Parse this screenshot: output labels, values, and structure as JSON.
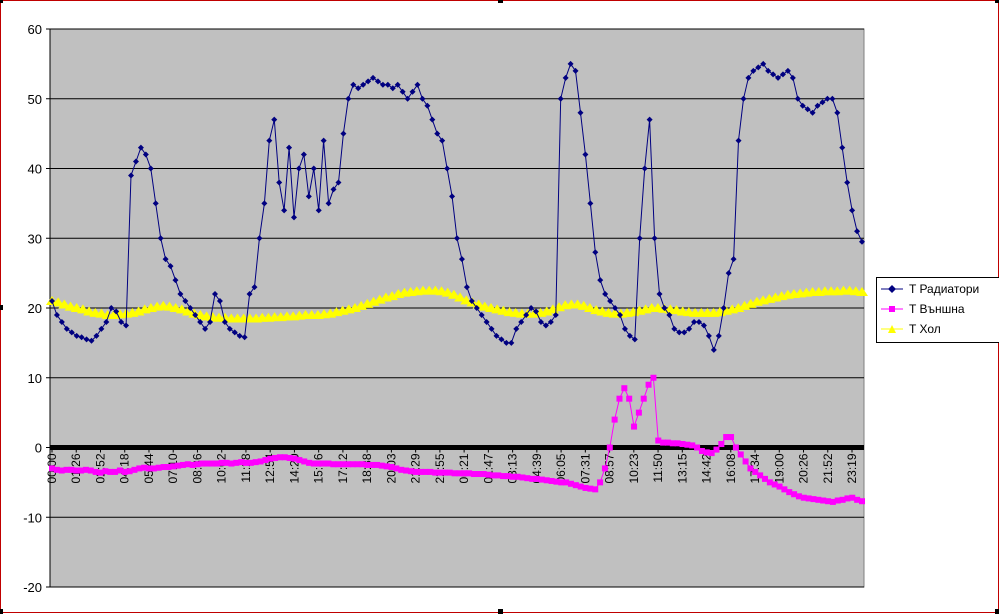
{
  "chart_data": {
    "type": "line",
    "title": "",
    "xlabel": "",
    "ylabel": "",
    "ylim": [
      -20,
      60
    ],
    "yticks": [
      -20,
      -10,
      0,
      10,
      20,
      30,
      40,
      50,
      60
    ],
    "xticks": [
      "00:00",
      "01:26",
      "02:52",
      "04:18",
      "05:44",
      "07:10",
      "08:36",
      "10:02",
      "11:28",
      "12:54",
      "14:20",
      "15:46",
      "17:12",
      "18:38",
      "20:03",
      "21:29",
      "22:55",
      "00:21",
      "01:47",
      "03:13",
      "04:39",
      "06:05",
      "07:31",
      "08:57",
      "10:23",
      "11:50",
      "13:15",
      "14:42",
      "16:08",
      "17:34",
      "19:00",
      "20:26",
      "21:52",
      "23:19"
    ],
    "grid": true,
    "legend_position": "right",
    "plot_background": "#c0c0c0",
    "series": [
      {
        "name": "T Радиатори",
        "color": "#000080",
        "marker": "diamond",
        "values": [
          21,
          19,
          18,
          17,
          16.5,
          16,
          15.8,
          15.5,
          15.3,
          16,
          17,
          18,
          20,
          19.5,
          18,
          17.5,
          39,
          41,
          43,
          42,
          40,
          35,
          30,
          27,
          26,
          24,
          22,
          21,
          20,
          19,
          18,
          17,
          18,
          22,
          21,
          18,
          17,
          16.5,
          16,
          15.8,
          22,
          23,
          30,
          35,
          44,
          47,
          38,
          34,
          43,
          33,
          40,
          42,
          36,
          40,
          34,
          44,
          35,
          37,
          38,
          45,
          50,
          52,
          51.5,
          52,
          52.5,
          53,
          52.5,
          52,
          52,
          51.5,
          52,
          51,
          50,
          51,
          52,
          50,
          49,
          47,
          45,
          44,
          40,
          36,
          30,
          27,
          23,
          21,
          20,
          19,
          18,
          17,
          16,
          15.5,
          15,
          15,
          17,
          18,
          19,
          20,
          19.5,
          18,
          17.5,
          18,
          19,
          50,
          53,
          55,
          54,
          48,
          42,
          35,
          28,
          24,
          22,
          21,
          20,
          19,
          17,
          16,
          15.5,
          30,
          40,
          47,
          30,
          22,
          20,
          19,
          17,
          16.5,
          16.5,
          17,
          18,
          18,
          17.5,
          16,
          14,
          16,
          20,
          25,
          27,
          44,
          50,
          53,
          54,
          54.5,
          55,
          54,
          53.5,
          53,
          53.5,
          54,
          53,
          50,
          49,
          48.5,
          48,
          49,
          49.5,
          50,
          50,
          48,
          43,
          38,
          34,
          31,
          29.5
        ]
      },
      {
        "name": "T Външна",
        "color": "#ff00ff",
        "marker": "square",
        "values": [
          -3,
          -3.2,
          -3.3,
          -3.2,
          -3.2,
          -3.3,
          -3.3,
          -3.2,
          -3.3,
          -3.5,
          -3.6,
          -3.4,
          -3.5,
          -3.5,
          -3.3,
          -3.5,
          -3.4,
          -3.2,
          -3,
          -2.9,
          -3,
          -3,
          -2.9,
          -2.8,
          -2.8,
          -2.7,
          -2.6,
          -2.5,
          -2.4,
          -2.5,
          -2.4,
          -2.3,
          -2.3,
          -2.3,
          -2.3,
          -2.2,
          -2.2,
          -2.3,
          -2.2,
          -2.1,
          -2.2,
          -2.2,
          -2.1,
          -2,
          -1.8,
          -1.6,
          -1.5,
          -1.4,
          -1.4,
          -1.5,
          -1.6,
          -1.8,
          -2,
          -2.2,
          -2.3,
          -2.3,
          -2.3,
          -2.3,
          -2.4,
          -2.4,
          -2.4,
          -2.4,
          -2.4,
          -2.4,
          -2.4,
          -2.5,
          -2.5,
          -2.5,
          -2.6,
          -2.7,
          -2.8,
          -3,
          -3.2,
          -3.3,
          -3.4,
          -3.5,
          -3.5,
          -3.5,
          -3.5,
          -3.6,
          -3.6,
          -3.6,
          -3.6,
          -3.7,
          -3.7,
          -3.7,
          -3.7,
          -3.8,
          -3.8,
          -3.8,
          -3.9,
          -4,
          -4,
          -4.1,
          -4.1,
          -4.2,
          -4.2,
          -4.3,
          -4.4,
          -4.5,
          -4.5,
          -4.6,
          -4.7,
          -4.8,
          -4.9,
          -5,
          -5,
          -5.2,
          -5.4,
          -5.6,
          -5.8,
          -5.9,
          -6,
          -5,
          -3,
          0,
          4,
          7,
          8.5,
          7,
          3,
          5,
          7,
          9,
          10,
          1,
          0.7,
          0.7,
          0.6,
          0.6,
          0.5,
          0.4,
          0.3,
          0,
          -0.5,
          -0.7,
          -0.8,
          -0.3,
          0.5,
          1.5,
          1.5,
          0,
          -1,
          -2,
          -3,
          -3.5,
          -4,
          -4.5,
          -5,
          -5.3,
          -5.6,
          -6,
          -6.4,
          -6.7,
          -7,
          -7.2,
          -7.3,
          -7.4,
          -7.5,
          -7.6,
          -7.7,
          -7.8,
          -7.6,
          -7.5,
          -7.3,
          -7.2,
          -7.5,
          -7.7
        ]
      },
      {
        "name": "T Хол",
        "color": "#ffff00",
        "marker": "triangle",
        "values": [
          21,
          20.8,
          20.5,
          20.2,
          20,
          19.8,
          19.5,
          19.3,
          19.2,
          19,
          19,
          19.1,
          19.2,
          19.3,
          19.5,
          19.8,
          20,
          20.2,
          20.3,
          20.2,
          20,
          19.8,
          19.5,
          19.2,
          19,
          18.8,
          18.7,
          18.6,
          18.6,
          18.5,
          18.5,
          18.5,
          18.5,
          18.5,
          18.6,
          18.6,
          18.7,
          18.7,
          18.8,
          18.8,
          18.9,
          19,
          19,
          19,
          19.1,
          19.2,
          19.4,
          19.6,
          19.8,
          20,
          20.3,
          20.6,
          20.9,
          21.2,
          21.5,
          21.7,
          22,
          22.2,
          22.3,
          22.4,
          22.5,
          22.5,
          22.5,
          22.4,
          22.2,
          21.9,
          21.5,
          21.1,
          20.8,
          20.5,
          20.2,
          20,
          19.8,
          19.6,
          19.4,
          19.3,
          19.2,
          19.2,
          19.2,
          19.3,
          19.5,
          19.8,
          20.1,
          20.4,
          20.5,
          20.5,
          20.3,
          20,
          19.7,
          19.5,
          19.3,
          19.2,
          19.2,
          19.3,
          19.4,
          19.6,
          19.8,
          20,
          20,
          19.9,
          19.8,
          19.7,
          19.5,
          19.4,
          19.3,
          19.3,
          19.3,
          19.3,
          19.4,
          19.6,
          19.8,
          20,
          20.3,
          20.6,
          20.9,
          21.1,
          21.3,
          21.5,
          21.7,
          21.9,
          22,
          22.1,
          22.2,
          22.3,
          22.3,
          22.4,
          22.4,
          22.4,
          22.5,
          22.5,
          22.4,
          22.3
        ]
      }
    ]
  }
}
